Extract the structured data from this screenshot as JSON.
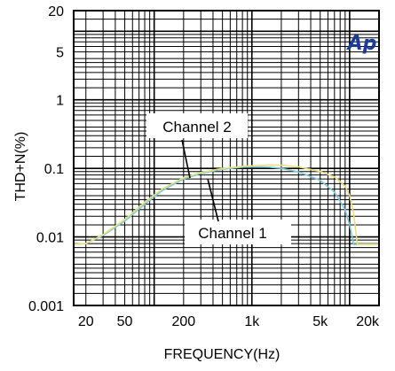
{
  "chart_data": {
    "type": "line",
    "title": "",
    "xlabel": "FREQUENCY(Hz)",
    "ylabel": "THD+N(%)",
    "x_scale": "log",
    "y_scale": "log",
    "xlim": [
      20,
      20000
    ],
    "ylim": [
      0.001,
      20
    ],
    "grid": true,
    "x_ticks": [
      {
        "value": 20,
        "label": "20"
      },
      {
        "value": 50,
        "label": "50"
      },
      {
        "value": 200,
        "label": "200"
      },
      {
        "value": 1000,
        "label": "1k"
      },
      {
        "value": 5000,
        "label": "5k"
      },
      {
        "value": 20000,
        "label": "20k"
      }
    ],
    "y_ticks": [
      {
        "value": 20,
        "label": "20"
      },
      {
        "value": 5,
        "label": "5"
      },
      {
        "value": 1,
        "label": "1"
      },
      {
        "value": 0.1,
        "label": "0.1"
      },
      {
        "value": 0.01,
        "label": "0.01"
      },
      {
        "value": 0.001,
        "label": "0.001"
      }
    ],
    "series": [
      {
        "name": "Channel 1",
        "color": "#7fc8d8",
        "x": [
          15,
          20,
          30,
          50,
          80,
          120,
          200,
          300,
          500,
          800,
          1000,
          1500,
          2000,
          3000,
          5000,
          7000,
          9000,
          10000,
          11000,
          20000
        ],
        "y": [
          0.0078,
          0.008,
          0.0105,
          0.017,
          0.03,
          0.047,
          0.07,
          0.084,
          0.097,
          0.104,
          0.105,
          0.104,
          0.1,
          0.089,
          0.067,
          0.045,
          0.025,
          0.015,
          0.0078,
          0.0078
        ]
      },
      {
        "name": "Channel 2",
        "color": "#e8e080",
        "x": [
          15,
          20,
          30,
          50,
          80,
          120,
          200,
          300,
          500,
          800,
          1000,
          1500,
          2000,
          3000,
          5000,
          7000,
          9000,
          10000,
          11000,
          12000,
          20000
        ],
        "y": [
          0.0078,
          0.008,
          0.0108,
          0.018,
          0.032,
          0.05,
          0.073,
          0.087,
          0.1,
          0.107,
          0.109,
          0.112,
          0.111,
          0.105,
          0.09,
          0.075,
          0.055,
          0.04,
          0.022,
          0.0078,
          0.0078
        ]
      }
    ],
    "annotations": [
      {
        "text": "Channel 2",
        "target_series": "Channel 2"
      },
      {
        "text": "Channel 1",
        "target_series": "Channel 1"
      }
    ]
  },
  "logo": {
    "text": "Ap",
    "color": "#1a3a9c"
  }
}
